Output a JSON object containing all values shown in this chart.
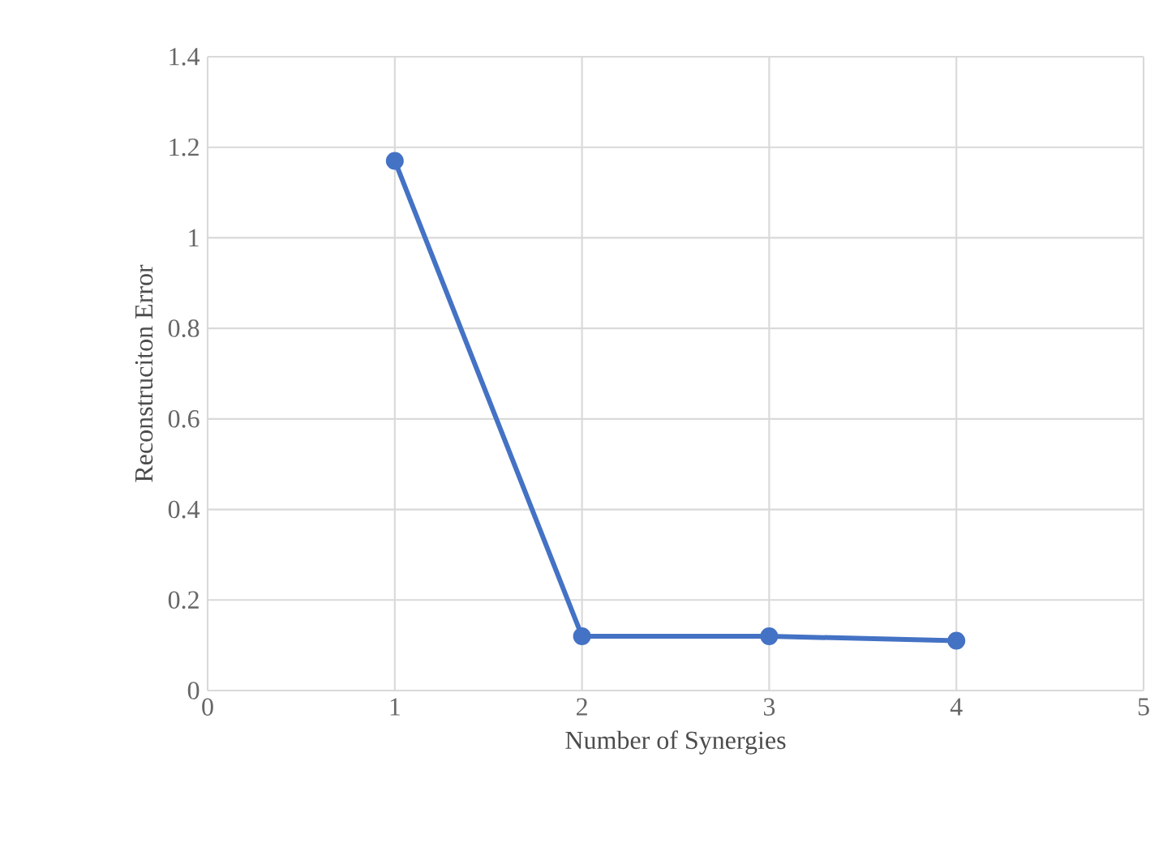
{
  "chart_data": {
    "type": "line",
    "xlabel": "Number of Synergies",
    "ylabel": "Reconstruciton  Error",
    "x": [
      1,
      2,
      3,
      4
    ],
    "series": [
      {
        "color": "#4472c4",
        "values": [
          1.17,
          0.12,
          0.12,
          0.11
        ]
      }
    ],
    "xlim": [
      0,
      5
    ],
    "xticks": [
      0,
      1,
      2,
      3,
      4,
      5
    ],
    "ylim": [
      0,
      1.4
    ],
    "yticks": [
      0,
      0.2,
      0.4,
      0.6,
      0.8,
      1,
      1.2,
      1.4
    ],
    "grid": true,
    "marker": "circle",
    "line_style": "solid"
  }
}
